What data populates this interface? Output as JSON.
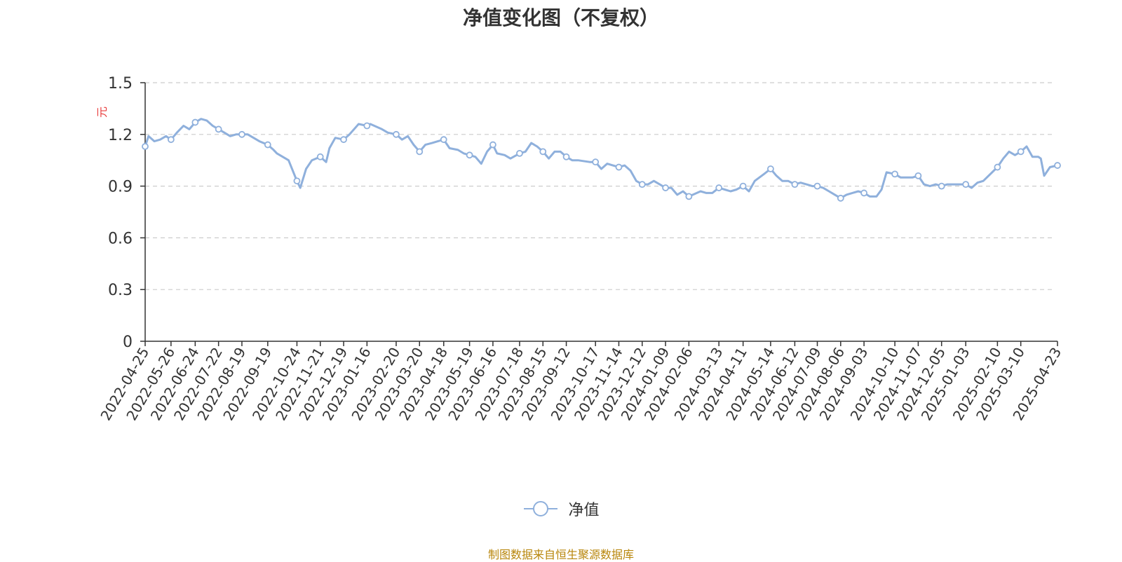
{
  "chart_data": {
    "type": "line",
    "title": "净值变化图（不复权）",
    "ylabel": "元",
    "ylim": [
      0,
      1.5
    ],
    "yticks": [
      "0",
      "0.3",
      "0.6",
      "0.9",
      "1.2",
      "1.5"
    ],
    "xlim": [
      "2022-04-25",
      "2025-04-23"
    ],
    "grid": true,
    "legend_position": "bottom",
    "line_color": "#8fb0dc",
    "x_tick_labels": [
      "2022-04-25",
      "2022-05-26",
      "2022-06-24",
      "2022-07-22",
      "2022-08-19",
      "2022-09-19",
      "2022-10-24",
      "2022-11-21",
      "2022-12-19",
      "2023-01-16",
      "2023-02-20",
      "2023-03-20",
      "2023-04-18",
      "2023-05-19",
      "2023-06-16",
      "2023-07-18",
      "2023-08-15",
      "2023-09-12",
      "2023-10-17",
      "2023-11-14",
      "2023-12-12",
      "2024-01-09",
      "2024-02-06",
      "2024-03-13",
      "2024-04-11",
      "2024-05-14",
      "2024-06-12",
      "2024-07-09",
      "2024-08-06",
      "2024-09-03",
      "2024-10-10",
      "2024-11-07",
      "2024-12-05",
      "2025-01-03",
      "2025-02-10",
      "2025-03-10",
      "2025-04-23"
    ],
    "series": [
      {
        "name": "净值",
        "points": [
          [
            "2022-04-25",
            1.13
          ],
          [
            "2022-04-29",
            1.19
          ],
          [
            "2022-05-06",
            1.16
          ],
          [
            "2022-05-13",
            1.17
          ],
          [
            "2022-05-20",
            1.19
          ],
          [
            "2022-05-26",
            1.17
          ],
          [
            "2022-06-02",
            1.21
          ],
          [
            "2022-06-10",
            1.25
          ],
          [
            "2022-06-17",
            1.23
          ],
          [
            "2022-06-24",
            1.27
          ],
          [
            "2022-07-01",
            1.29
          ],
          [
            "2022-07-08",
            1.28
          ],
          [
            "2022-07-15",
            1.25
          ],
          [
            "2022-07-22",
            1.23
          ],
          [
            "2022-07-29",
            1.21
          ],
          [
            "2022-08-05",
            1.19
          ],
          [
            "2022-08-12",
            1.2
          ],
          [
            "2022-08-19",
            1.2
          ],
          [
            "2022-08-26",
            1.2
          ],
          [
            "2022-09-02",
            1.18
          ],
          [
            "2022-09-09",
            1.16
          ],
          [
            "2022-09-19",
            1.14
          ],
          [
            "2022-09-26",
            1.11
          ],
          [
            "2022-09-30",
            1.09
          ],
          [
            "2022-10-14",
            1.05
          ],
          [
            "2022-10-24",
            0.93
          ],
          [
            "2022-10-28",
            0.89
          ],
          [
            "2022-11-04",
            1.0
          ],
          [
            "2022-11-11",
            1.05
          ],
          [
            "2022-11-21",
            1.07
          ],
          [
            "2022-11-28",
            1.04
          ],
          [
            "2022-12-02",
            1.12
          ],
          [
            "2022-12-09",
            1.18
          ],
          [
            "2022-12-19",
            1.17
          ],
          [
            "2022-12-26",
            1.2
          ],
          [
            "2023-01-06",
            1.26
          ],
          [
            "2023-01-16",
            1.25
          ],
          [
            "2023-01-20",
            1.26
          ],
          [
            "2023-02-03",
            1.23
          ],
          [
            "2023-02-10",
            1.21
          ],
          [
            "2023-02-20",
            1.2
          ],
          [
            "2023-02-27",
            1.17
          ],
          [
            "2023-03-06",
            1.19
          ],
          [
            "2023-03-13",
            1.14
          ],
          [
            "2023-03-20",
            1.1
          ],
          [
            "2023-03-27",
            1.14
          ],
          [
            "2023-04-04",
            1.15
          ],
          [
            "2023-04-11",
            1.16
          ],
          [
            "2023-04-18",
            1.17
          ],
          [
            "2023-04-25",
            1.12
          ],
          [
            "2023-05-05",
            1.11
          ],
          [
            "2023-05-12",
            1.09
          ],
          [
            "2023-05-19",
            1.08
          ],
          [
            "2023-05-26",
            1.07
          ],
          [
            "2023-06-02",
            1.03
          ],
          [
            "2023-06-09",
            1.1
          ],
          [
            "2023-06-16",
            1.14
          ],
          [
            "2023-06-21",
            1.09
          ],
          [
            "2023-06-30",
            1.08
          ],
          [
            "2023-07-07",
            1.06
          ],
          [
            "2023-07-18",
            1.09
          ],
          [
            "2023-07-25",
            1.1
          ],
          [
            "2023-08-01",
            1.15
          ],
          [
            "2023-08-08",
            1.13
          ],
          [
            "2023-08-15",
            1.1
          ],
          [
            "2023-08-22",
            1.06
          ],
          [
            "2023-08-29",
            1.1
          ],
          [
            "2023-09-05",
            1.1
          ],
          [
            "2023-09-12",
            1.07
          ],
          [
            "2023-09-19",
            1.05
          ],
          [
            "2023-09-26",
            1.05
          ],
          [
            "2023-10-10",
            1.04
          ],
          [
            "2023-10-17",
            1.04
          ],
          [
            "2023-10-24",
            1.0
          ],
          [
            "2023-10-31",
            1.03
          ],
          [
            "2023-11-07",
            1.02
          ],
          [
            "2023-11-14",
            1.01
          ],
          [
            "2023-11-21",
            1.02
          ],
          [
            "2023-11-28",
            0.99
          ],
          [
            "2023-12-05",
            0.93
          ],
          [
            "2023-12-12",
            0.91
          ],
          [
            "2023-12-19",
            0.91
          ],
          [
            "2023-12-26",
            0.93
          ],
          [
            "2024-01-02",
            0.91
          ],
          [
            "2024-01-09",
            0.89
          ],
          [
            "2024-01-16",
            0.89
          ],
          [
            "2024-01-23",
            0.85
          ],
          [
            "2024-01-30",
            0.87
          ],
          [
            "2024-02-06",
            0.84
          ],
          [
            "2024-02-20",
            0.87
          ],
          [
            "2024-02-27",
            0.86
          ],
          [
            "2024-03-05",
            0.86
          ],
          [
            "2024-03-13",
            0.89
          ],
          [
            "2024-03-20",
            0.88
          ],
          [
            "2024-03-27",
            0.87
          ],
          [
            "2024-04-03",
            0.88
          ],
          [
            "2024-04-11",
            0.9
          ],
          [
            "2024-04-18",
            0.87
          ],
          [
            "2024-04-25",
            0.93
          ],
          [
            "2024-05-06",
            0.97
          ],
          [
            "2024-05-14",
            1.0
          ],
          [
            "2024-05-21",
            0.96
          ],
          [
            "2024-05-28",
            0.93
          ],
          [
            "2024-06-04",
            0.93
          ],
          [
            "2024-06-12",
            0.91
          ],
          [
            "2024-06-19",
            0.92
          ],
          [
            "2024-06-26",
            0.91
          ],
          [
            "2024-07-03",
            0.9
          ],
          [
            "2024-07-09",
            0.9
          ],
          [
            "2024-07-16",
            0.89
          ],
          [
            "2024-07-23",
            0.87
          ],
          [
            "2024-07-30",
            0.85
          ],
          [
            "2024-08-06",
            0.83
          ],
          [
            "2024-08-13",
            0.85
          ],
          [
            "2024-08-20",
            0.86
          ],
          [
            "2024-08-27",
            0.87
          ],
          [
            "2024-09-03",
            0.86
          ],
          [
            "2024-09-10",
            0.84
          ],
          [
            "2024-09-18",
            0.84
          ],
          [
            "2024-09-24",
            0.88
          ],
          [
            "2024-09-30",
            0.98
          ],
          [
            "2024-10-10",
            0.97
          ],
          [
            "2024-10-17",
            0.95
          ],
          [
            "2024-10-24",
            0.95
          ],
          [
            "2024-10-31",
            0.95
          ],
          [
            "2024-11-07",
            0.96
          ],
          [
            "2024-11-14",
            0.91
          ],
          [
            "2024-11-21",
            0.9
          ],
          [
            "2024-11-28",
            0.91
          ],
          [
            "2024-12-05",
            0.9
          ],
          [
            "2024-12-12",
            0.91
          ],
          [
            "2024-12-19",
            0.91
          ],
          [
            "2024-12-26",
            0.91
          ],
          [
            "2025-01-03",
            0.91
          ],
          [
            "2025-01-10",
            0.89
          ],
          [
            "2025-01-17",
            0.92
          ],
          [
            "2025-01-24",
            0.93
          ],
          [
            "2025-02-10",
            1.01
          ],
          [
            "2025-02-17",
            1.06
          ],
          [
            "2025-02-24",
            1.1
          ],
          [
            "2025-03-03",
            1.08
          ],
          [
            "2025-03-10",
            1.1
          ],
          [
            "2025-03-17",
            1.13
          ],
          [
            "2025-03-24",
            1.07
          ],
          [
            "2025-03-31",
            1.07
          ],
          [
            "2025-04-03",
            1.06
          ],
          [
            "2025-04-07",
            0.96
          ],
          [
            "2025-04-14",
            1.01
          ],
          [
            "2025-04-23",
            1.02
          ]
        ]
      }
    ]
  },
  "legend": {
    "label": "净值"
  },
  "source_note": "制图数据来自恒生聚源数据库"
}
